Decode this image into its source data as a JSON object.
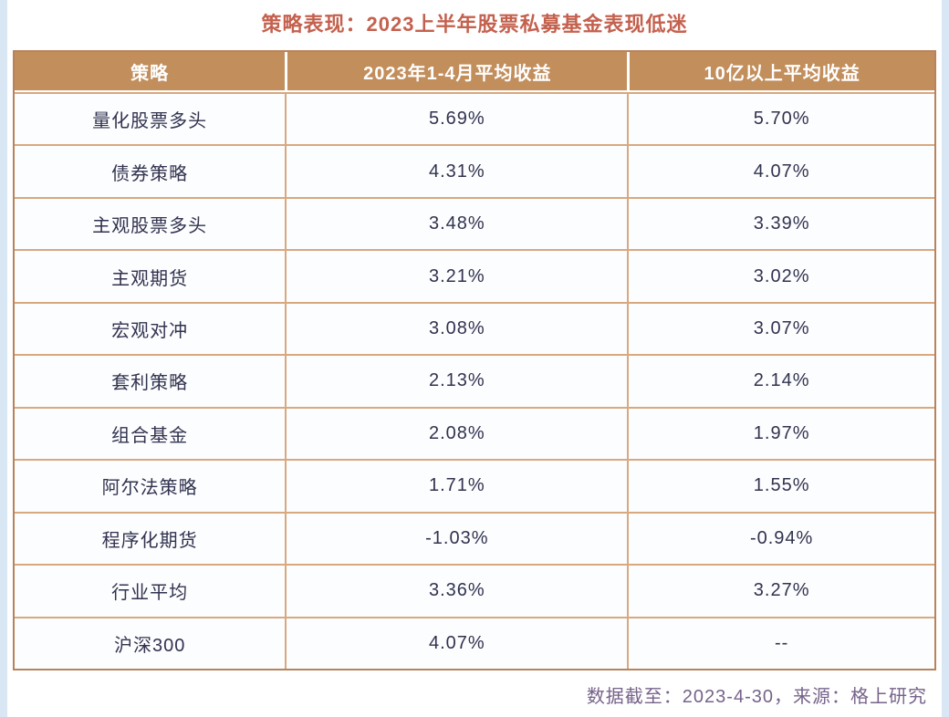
{
  "page": {
    "title": "策略表现：2023上半年股票私募基金表现低迷",
    "footnote": "数据截至：2023-4-30，来源：格上研究"
  },
  "chart_data": {
    "type": "table",
    "title": "策略表现：2023上半年股票私募基金表现低迷",
    "columns": [
      "策略",
      "2023年1-4月平均收益",
      "10亿以上平均收益"
    ],
    "rows": [
      [
        "量化股票多头",
        "5.69%",
        "5.70%"
      ],
      [
        "债券策略",
        "4.31%",
        "4.07%"
      ],
      [
        "主观股票多头",
        "3.48%",
        "3.39%"
      ],
      [
        "主观期货",
        "3.21%",
        "3.02%"
      ],
      [
        "宏观对冲",
        "3.08%",
        "3.07%"
      ],
      [
        "套利策略",
        "2.13%",
        "2.14%"
      ],
      [
        "组合基金",
        "2.08%",
        "1.97%"
      ],
      [
        "阿尔法策略",
        "1.71%",
        "1.55%"
      ],
      [
        "程序化期货",
        "-1.03%",
        "-0.94%"
      ],
      [
        "行业平均",
        "3.36%",
        "3.27%"
      ],
      [
        "沪深300",
        "4.07%",
        "--"
      ]
    ],
    "footnote": "数据截至：2023-4-30，来源：格上研究",
    "layout": {
      "legend": "none",
      "grid": "full-borders",
      "header_position": "top"
    }
  },
  "colors": {
    "title_text": "#c4614e",
    "header_bg": "#c28e5c",
    "header_text": "#ffffff",
    "cell_bg": "#fbfdfe",
    "cell_text": "#32324f",
    "inner_border": "#d9a87f",
    "outer_border": "#b9825c",
    "footnote_text": "#76638a",
    "edge_strip": "#d9e6f3"
  }
}
